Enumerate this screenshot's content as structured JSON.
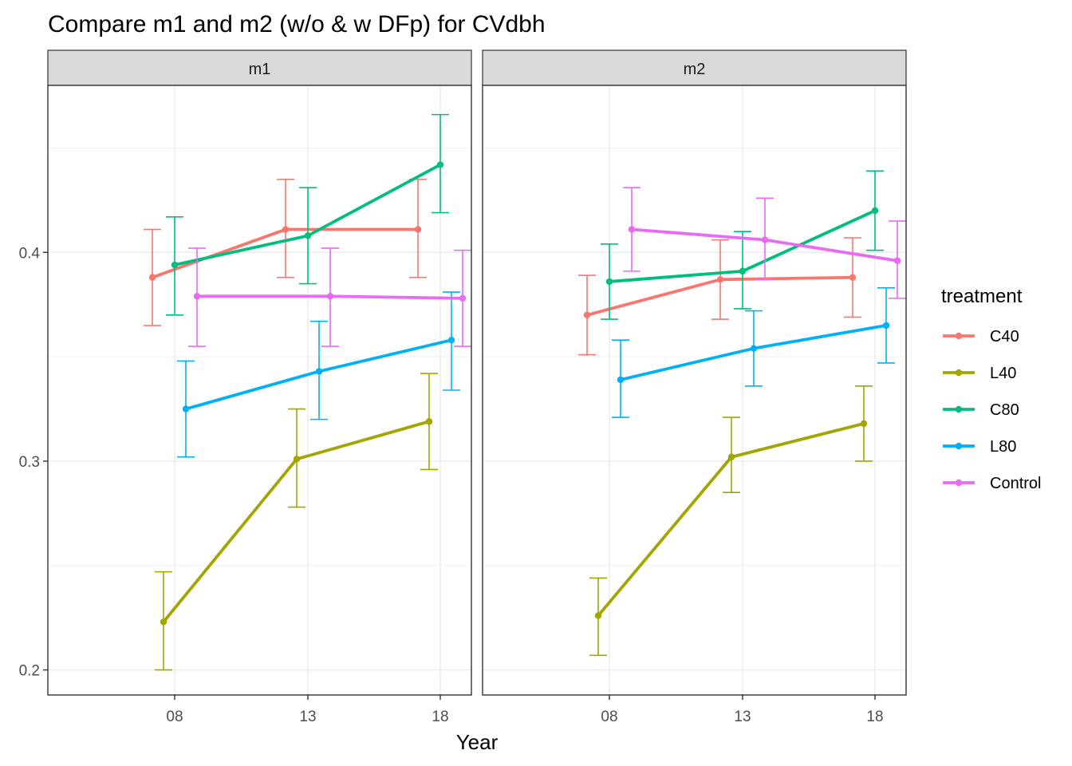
{
  "chart_data": {
    "type": "line",
    "title": "Compare m1 and m2 (w/o & w DFp) for CVdbh",
    "xlabel": "Year",
    "ylabel": "",
    "categories": [
      "08",
      "13",
      "18"
    ],
    "y_ticks": [
      0.2,
      0.3,
      0.4
    ],
    "ylim": [
      0.188,
      0.48
    ],
    "grid": true,
    "legend": {
      "title": "treatment",
      "placement": "right"
    },
    "colors": {
      "C40": "#F8766D",
      "L40": "#A3A500",
      "C80": "#00BF7D",
      "L80": "#00B0F6",
      "Control": "#E76BF3"
    },
    "panels": [
      {
        "label": "m1",
        "series": [
          {
            "name": "C40",
            "values": [
              0.388,
              0.411,
              0.411
            ],
            "lower": [
              0.365,
              0.388,
              0.388
            ],
            "upper": [
              0.411,
              0.435,
              0.435
            ]
          },
          {
            "name": "L40",
            "values": [
              0.223,
              0.301,
              0.319
            ],
            "lower": [
              0.2,
              0.278,
              0.296
            ],
            "upper": [
              0.247,
              0.325,
              0.342
            ]
          },
          {
            "name": "C80",
            "values": [
              0.394,
              0.408,
              0.442
            ],
            "lower": [
              0.37,
              0.385,
              0.419
            ],
            "upper": [
              0.417,
              0.431,
              0.466
            ]
          },
          {
            "name": "L80",
            "values": [
              0.325,
              0.343,
              0.358
            ],
            "lower": [
              0.302,
              0.32,
              0.334
            ],
            "upper": [
              0.348,
              0.367,
              0.381
            ]
          },
          {
            "name": "Control",
            "values": [
              0.379,
              0.379,
              0.378
            ],
            "lower": [
              0.355,
              0.355,
              0.355
            ],
            "upper": [
              0.402,
              0.402,
              0.401
            ]
          }
        ]
      },
      {
        "label": "m2",
        "series": [
          {
            "name": "C40",
            "values": [
              0.37,
              0.387,
              0.388
            ],
            "lower": [
              0.351,
              0.368,
              0.369
            ],
            "upper": [
              0.389,
              0.406,
              0.407
            ]
          },
          {
            "name": "L40",
            "values": [
              0.226,
              0.302,
              0.318
            ],
            "lower": [
              0.207,
              0.285,
              0.3
            ],
            "upper": [
              0.244,
              0.321,
              0.336
            ]
          },
          {
            "name": "C80",
            "values": [
              0.386,
              0.391,
              0.42
            ],
            "lower": [
              0.368,
              0.373,
              0.401
            ],
            "upper": [
              0.404,
              0.41,
              0.439
            ]
          },
          {
            "name": "L80",
            "values": [
              0.339,
              0.354,
              0.365
            ],
            "lower": [
              0.321,
              0.336,
              0.347
            ],
            "upper": [
              0.358,
              0.372,
              0.383
            ]
          },
          {
            "name": "Control",
            "values": [
              0.411,
              0.406,
              0.396
            ],
            "lower": [
              0.391,
              0.387,
              0.378
            ],
            "upper": [
              0.431,
              0.426,
              0.415
            ]
          }
        ]
      }
    ]
  }
}
